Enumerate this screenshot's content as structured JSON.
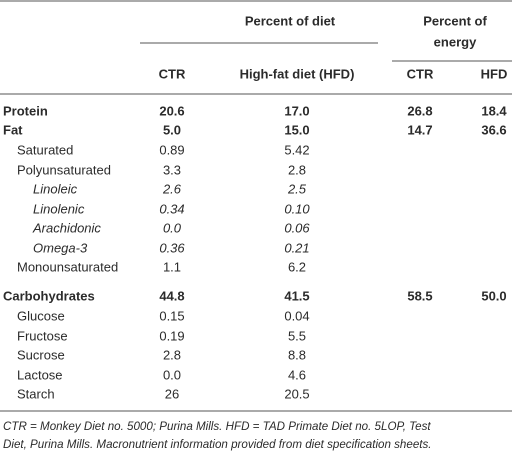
{
  "table": {
    "group_headers": [
      "Percent of diet",
      [
        "Percent of",
        "energy"
      ]
    ],
    "column_headers": [
      "CTR",
      "High-fat diet (HFD)",
      "CTR",
      "HFD"
    ],
    "rows": [
      {
        "kind": "group",
        "cells": [
          "Protein",
          "20.6",
          "17.0",
          "26.8",
          "18.4"
        ]
      },
      {
        "kind": "group",
        "cells": [
          "Fat",
          "5.0",
          "15.0",
          "14.7",
          "36.6"
        ]
      },
      {
        "kind": "item",
        "cells": [
          "Saturated",
          "0.89",
          "5.42",
          null,
          null
        ]
      },
      {
        "kind": "item",
        "cells": [
          "Polyunsaturated",
          "3.3",
          "2.8",
          null,
          null
        ]
      },
      {
        "kind": "subitem",
        "cells": [
          "Linoleic",
          "2.6",
          "2.5",
          null,
          null
        ]
      },
      {
        "kind": "subitem",
        "cells": [
          "Linolenic",
          "0.34",
          "0.10",
          null,
          null
        ]
      },
      {
        "kind": "subitem",
        "cells": [
          "Arachidonic",
          "0.0",
          "0.06",
          null,
          null
        ]
      },
      {
        "kind": "subitem",
        "cells": [
          "Omega-3",
          "0.36",
          "0.21",
          null,
          null
        ]
      },
      {
        "kind": "item",
        "cells": [
          "Monounsaturated",
          "1.1",
          "6.2",
          null,
          null
        ]
      },
      {
        "kind": "group",
        "cells": [
          "Carbohydrates",
          "44.8",
          "41.5",
          "58.5",
          "50.0"
        ]
      },
      {
        "kind": "item",
        "cells": [
          "Glucose",
          "0.15",
          "0.04",
          null,
          null
        ]
      },
      {
        "kind": "item",
        "cells": [
          "Fructose",
          "0.19",
          "5.5",
          null,
          null
        ]
      },
      {
        "kind": "item",
        "cells": [
          "Sucrose",
          "2.8",
          "8.8",
          null,
          null
        ]
      },
      {
        "kind": "item",
        "cells": [
          "Lactose",
          "0.0",
          "4.6",
          null,
          null
        ]
      },
      {
        "kind": "item",
        "cells": [
          "Starch",
          "26",
          "20.5",
          null,
          null
        ]
      }
    ],
    "footnote": [
      "CTR = Monkey Diet no. 5000; Purina Mills. HFD = TAD Primate Diet no. 5LOP, Test",
      "Diet, Purina Mills. Macronutrient information provided from diet specification sheets."
    ]
  }
}
